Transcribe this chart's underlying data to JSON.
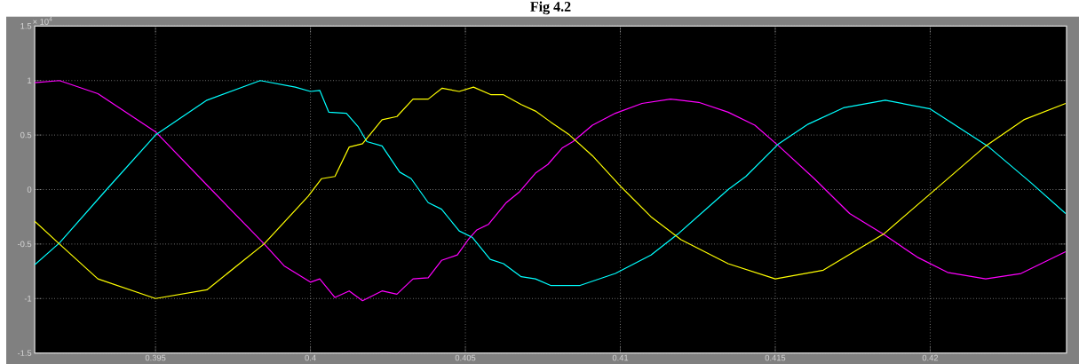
{
  "chart_data": {
    "type": "line",
    "title": "Fig 4.2",
    "annotations": [
      "× 10$^{4}$"
    ],
    "xlim": [
      0.3911,
      0.4244
    ],
    "xticks": [
      0.395,
      0.4,
      0.405,
      0.41,
      0.415,
      0.42
    ],
    "ylim": [
      -1.5,
      1.5
    ],
    "yticks": [
      -1.5,
      -1,
      -0.5,
      0,
      0.5,
      1,
      1.5
    ],
    "grid": true,
    "marker": "none",
    "line_style": "solid",
    "series": [
      {
        "color": "#ff00ff",
        "x": [
          0.3911,
          0.3919,
          0.39314,
          0.395,
          0.3968,
          0.39851,
          0.39915,
          0.4,
          0.4003,
          0.40079,
          0.40125,
          0.40168,
          0.40231,
          0.40279,
          0.40331,
          0.4038,
          0.40423,
          0.40474,
          0.40509,
          0.40537,
          0.40574,
          0.40632,
          0.40675,
          0.40726,
          0.40766,
          0.40812,
          0.40847,
          0.4091,
          0.40984,
          0.4107,
          0.41162,
          0.41253,
          0.41348,
          0.41434,
          0.41511,
          0.41626,
          0.4174,
          0.41849,
          0.41958,
          0.42056,
          0.42179,
          0.42293,
          0.42437
        ],
        "values": [
          0.98,
          1.0,
          0.88,
          0.53,
          0.0,
          -0.5,
          -0.7,
          -0.85,
          -0.82,
          -0.99,
          -0.93,
          -1.02,
          -0.93,
          -0.96,
          -0.82,
          -0.81,
          -0.65,
          -0.6,
          -0.46,
          -0.37,
          -0.32,
          -0.12,
          -0.02,
          0.15,
          0.23,
          0.38,
          0.44,
          0.59,
          0.7,
          0.79,
          0.83,
          0.8,
          0.71,
          0.59,
          0.4,
          0.1,
          -0.22,
          -0.41,
          -0.62,
          -0.76,
          -0.82,
          -0.77,
          -0.57
        ]
      },
      {
        "color": "#00ffff",
        "x": [
          0.3911,
          0.3919,
          0.39342,
          0.395,
          0.39666,
          0.39838,
          0.39951,
          0.4,
          0.4003,
          0.40059,
          0.40116,
          0.40153,
          0.40182,
          0.40231,
          0.40288,
          0.40325,
          0.4038,
          0.40423,
          0.4048,
          0.40523,
          0.4058,
          0.40623,
          0.4068,
          0.40726,
          0.40775,
          0.4087,
          0.40984,
          0.41099,
          0.41185,
          0.41348,
          0.41405,
          0.41511,
          0.41606,
          0.4172,
          0.41855,
          0.42,
          0.42185,
          0.42322,
          0.42437
        ],
        "values": [
          -0.69,
          -0.49,
          0.0,
          0.5,
          0.82,
          1.0,
          0.94,
          0.9,
          0.91,
          0.71,
          0.7,
          0.58,
          0.44,
          0.4,
          0.16,
          0.1,
          -0.12,
          -0.18,
          -0.38,
          -0.44,
          -0.64,
          -0.68,
          -0.8,
          -0.82,
          -0.88,
          -0.88,
          -0.77,
          -0.6,
          -0.41,
          0.0,
          0.12,
          0.42,
          0.6,
          0.75,
          0.82,
          0.74,
          0.4,
          0.07,
          -0.22
        ]
      },
      {
        "color": "#ffff00",
        "x": [
          0.3911,
          0.3919,
          0.39314,
          0.395,
          0.39666,
          0.3985,
          0.39993,
          0.40036,
          0.40079,
          0.40125,
          0.40168,
          0.40231,
          0.40279,
          0.40331,
          0.4038,
          0.40425,
          0.4048,
          0.40526,
          0.40583,
          0.40623,
          0.4068,
          0.40726,
          0.40775,
          0.40832,
          0.4091,
          0.41004,
          0.41099,
          0.41196,
          0.41348,
          0.415,
          0.41655,
          0.41849,
          0.42,
          0.42179,
          0.42302,
          0.42437
        ],
        "values": [
          -0.29,
          -0.5,
          -0.82,
          -1.0,
          -0.92,
          -0.5,
          -0.06,
          0.1,
          0.12,
          0.39,
          0.42,
          0.64,
          0.67,
          0.83,
          0.83,
          0.93,
          0.9,
          0.94,
          0.87,
          0.87,
          0.78,
          0.72,
          0.62,
          0.51,
          0.31,
          0.02,
          -0.25,
          -0.46,
          -0.68,
          -0.82,
          -0.74,
          -0.41,
          -0.04,
          0.4,
          0.64,
          0.79
        ]
      }
    ]
  }
}
